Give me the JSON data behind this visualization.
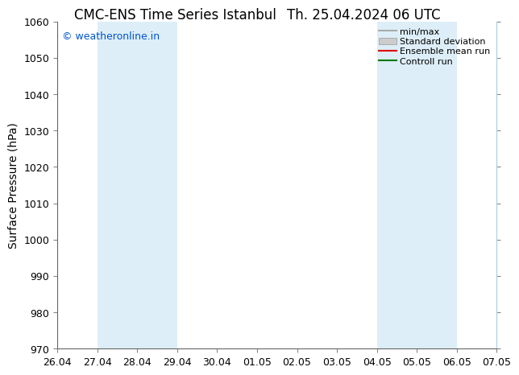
{
  "title_left": "CMC-ENS Time Series Istanbul",
  "title_right": "Th. 25.04.2024 06 UTC",
  "ylabel": "Surface Pressure (hPa)",
  "ylim": [
    970,
    1060
  ],
  "yticks": [
    970,
    980,
    990,
    1000,
    1010,
    1020,
    1030,
    1040,
    1050,
    1060
  ],
  "xlim_start": 0,
  "xlim_end": 11,
  "xtick_labels": [
    "26.04",
    "27.04",
    "28.04",
    "29.04",
    "30.04",
    "01.05",
    "02.05",
    "03.05",
    "04.05",
    "05.05",
    "06.05",
    "07.05"
  ],
  "shaded_bands": [
    {
      "x_start": 1.0,
      "x_end": 3.0
    },
    {
      "x_start": 8.0,
      "x_end": 10.0
    }
  ],
  "shaded_band_color": "#ddeef8",
  "shaded_band_edge_color": "#b8d4e8",
  "watermark": "© weatheronline.in",
  "watermark_color": "#0055cc",
  "legend_entries": [
    {
      "label": "min/max",
      "color": "#aaaaaa",
      "style": "line"
    },
    {
      "label": "Standard deviation",
      "color": "#cccccc",
      "style": "fill"
    },
    {
      "label": "Ensemble mean run",
      "color": "#dd0000",
      "style": "line"
    },
    {
      "label": "Controll run",
      "color": "#007700",
      "style": "line"
    }
  ],
  "spine_color": "#aaccdd",
  "background_color": "#ffffff",
  "title_fontsize": 12,
  "axis_label_fontsize": 10,
  "tick_fontsize": 9
}
